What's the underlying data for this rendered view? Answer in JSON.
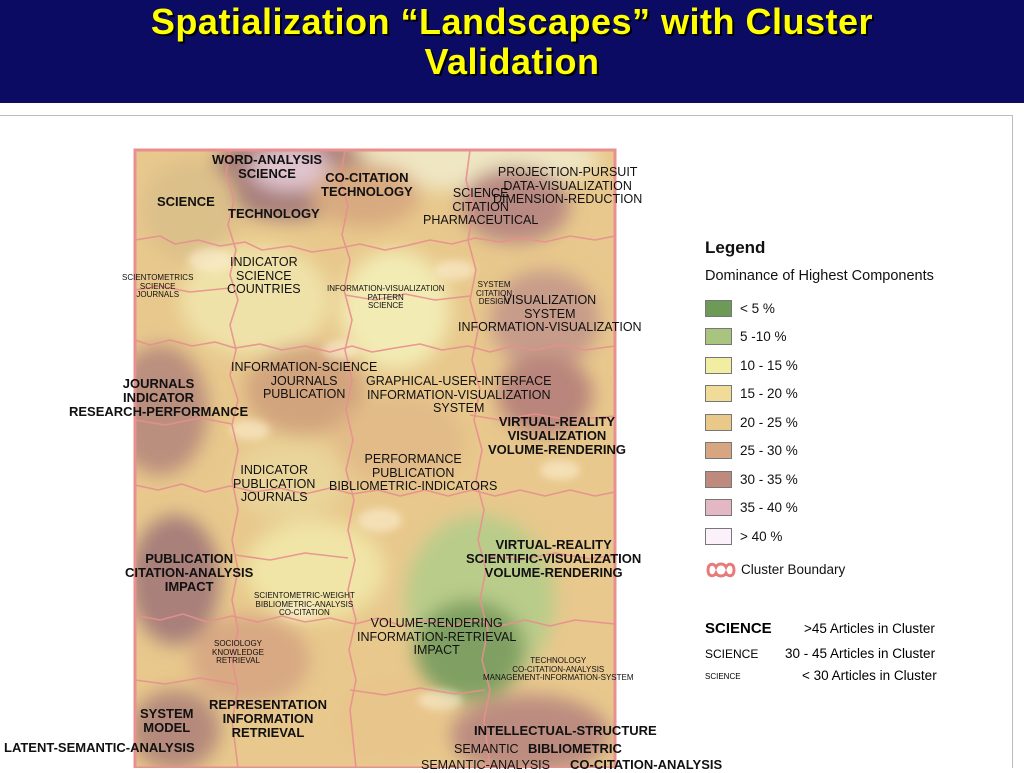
{
  "slide": {
    "title_line1": "Spatialization “Landscapes” with Cluster",
    "title_line2": "Validation"
  },
  "map": {
    "labels": [
      {
        "lines": [
          "WORD-ANALYSIS",
          "SCIENCE"
        ],
        "style": "bold"
      },
      {
        "lines": [
          "CO-CITATION",
          "TECHNOLOGY"
        ],
        "style": "bold"
      },
      {
        "lines": [
          "SCIENCE"
        ],
        "style": "bold"
      },
      {
        "lines": [
          "TECHNOLOGY"
        ],
        "style": "bold"
      },
      {
        "lines": [
          "SCIENCE",
          "CITATION",
          "PHARMACEUTICAL"
        ],
        "style": "medium"
      },
      {
        "lines": [
          "PROJECTION-PURSUIT",
          "DATA-VISUALIZATION",
          "DIMENSION-REDUCTION"
        ],
        "style": "medium"
      },
      {
        "lines": [
          "SCIENTOMETRICS",
          "SCIENCE",
          "JOURNALS"
        ],
        "style": "small"
      },
      {
        "lines": [
          "INDICATOR",
          "SCIENCE",
          "COUNTRIES"
        ],
        "style": "medium"
      },
      {
        "lines": [
          "INFORMATION-VISUALIZATION",
          "PATTERN",
          "SCIENCE"
        ],
        "style": "small"
      },
      {
        "lines": [
          "SYSTEM",
          "CITATION",
          "DESIGN"
        ],
        "style": "small"
      },
      {
        "lines": [
          "VISUALIZATION",
          "SYSTEM",
          "INFORMATION-VISUALIZATION"
        ],
        "style": "medium"
      },
      {
        "lines": [
          "INFORMATION-SCIENCE",
          "JOURNALS",
          "PUBLICATION"
        ],
        "style": "medium"
      },
      {
        "lines": [
          "JOURNALS",
          "INDICATOR",
          "RESEARCH-PERFORMANCE"
        ],
        "style": "bold"
      },
      {
        "lines": [
          "GRAPHICAL-USER-INTERFACE",
          "INFORMATION-VISUALIZATION",
          "SYSTEM"
        ],
        "style": "medium"
      },
      {
        "lines": [
          "VIRTUAL-REALITY",
          "VISUALIZATION",
          "VOLUME-RENDERING"
        ],
        "style": "bold"
      },
      {
        "lines": [
          "PERFORMANCE",
          "PUBLICATION",
          "BIBLIOMETRIC-INDICATORS"
        ],
        "style": "medium"
      },
      {
        "lines": [
          "INDICATOR",
          "PUBLICATION",
          "JOURNALS"
        ],
        "style": "medium"
      },
      {
        "lines": [
          "PUBLICATION",
          "CITATION-ANALYSIS",
          "IMPACT"
        ],
        "style": "bold"
      },
      {
        "lines": [
          "SCIENTOMETRIC-WEIGHT",
          "BIBLIOMETRIC-ANALYSIS",
          "CO-CITATION"
        ],
        "style": "small"
      },
      {
        "lines": [
          "VIRTUAL-REALITY",
          "SCIENTIFIC-VISUALIZATION",
          "VOLUME-RENDERING"
        ],
        "style": "bold"
      },
      {
        "lines": [
          "VOLUME-RENDERING",
          "INFORMATION-RETRIEVAL",
          "IMPACT"
        ],
        "style": "medium"
      },
      {
        "lines": [
          "SOCIOLOGY",
          "KNOWLEDGE",
          "RETRIEVAL"
        ],
        "style": "small"
      },
      {
        "lines": [
          "TECHNOLOGY",
          "CO-CITATION-ANALYSIS",
          "MANAGEMENT-INFORMATION-SYSTEM"
        ],
        "style": "small"
      },
      {
        "lines": [
          "SYSTEM",
          "MODEL"
        ],
        "style": "bold"
      },
      {
        "lines": [
          "REPRESENTATION",
          "INFORMATION",
          "RETRIEVAL"
        ],
        "style": "bold"
      },
      {
        "lines": [
          "LATENT-SEMANTIC-ANALYSIS"
        ],
        "style": "bold"
      },
      {
        "lines": [
          "INTELLECTUAL-STRUCTURE"
        ],
        "style": "bold"
      },
      {
        "lines": [
          "SEMANTIC"
        ],
        "style": "medium"
      },
      {
        "lines": [
          "BIBLIOMETRIC"
        ],
        "style": "bold"
      },
      {
        "lines": [
          "SEMANTIC-ANALYSIS"
        ],
        "style": "medium"
      },
      {
        "lines": [
          "CO-CITATION-ANALYSIS"
        ],
        "style": "bold"
      }
    ]
  },
  "legend": {
    "title": "Legend",
    "subtitle": "Dominance of Highest Components",
    "items": [
      {
        "label": "< 5 %",
        "color": "#6e9a58"
      },
      {
        "label": "5 -10 %",
        "color": "#a9c47f"
      },
      {
        "label": "10 - 15 %",
        "color": "#f1eda3"
      },
      {
        "label": "15 - 20 %",
        "color": "#f0dc98"
      },
      {
        "label": "20 - 25 %",
        "color": "#e9c88a"
      },
      {
        "label": "25 - 30 %",
        "color": "#d7a680"
      },
      {
        "label": "30 - 35 %",
        "color": "#bf8a7e"
      },
      {
        "label": "35 - 40 %",
        "color": "#e3b7c4"
      },
      {
        "label": "> 40 %",
        "color": "#fcf0fb"
      }
    ],
    "boundary_label": "Cluster Boundary",
    "boundary_color": "#e87a7a",
    "size_key": [
      {
        "key": "SCIENCE",
        "desc": ">45 Articles in Cluster"
      },
      {
        "key": "SCIENCE",
        "desc": "30 - 45 Articles in Cluster"
      },
      {
        "key": "SCIENCE",
        "desc": "< 30 Articles in Cluster"
      }
    ]
  }
}
